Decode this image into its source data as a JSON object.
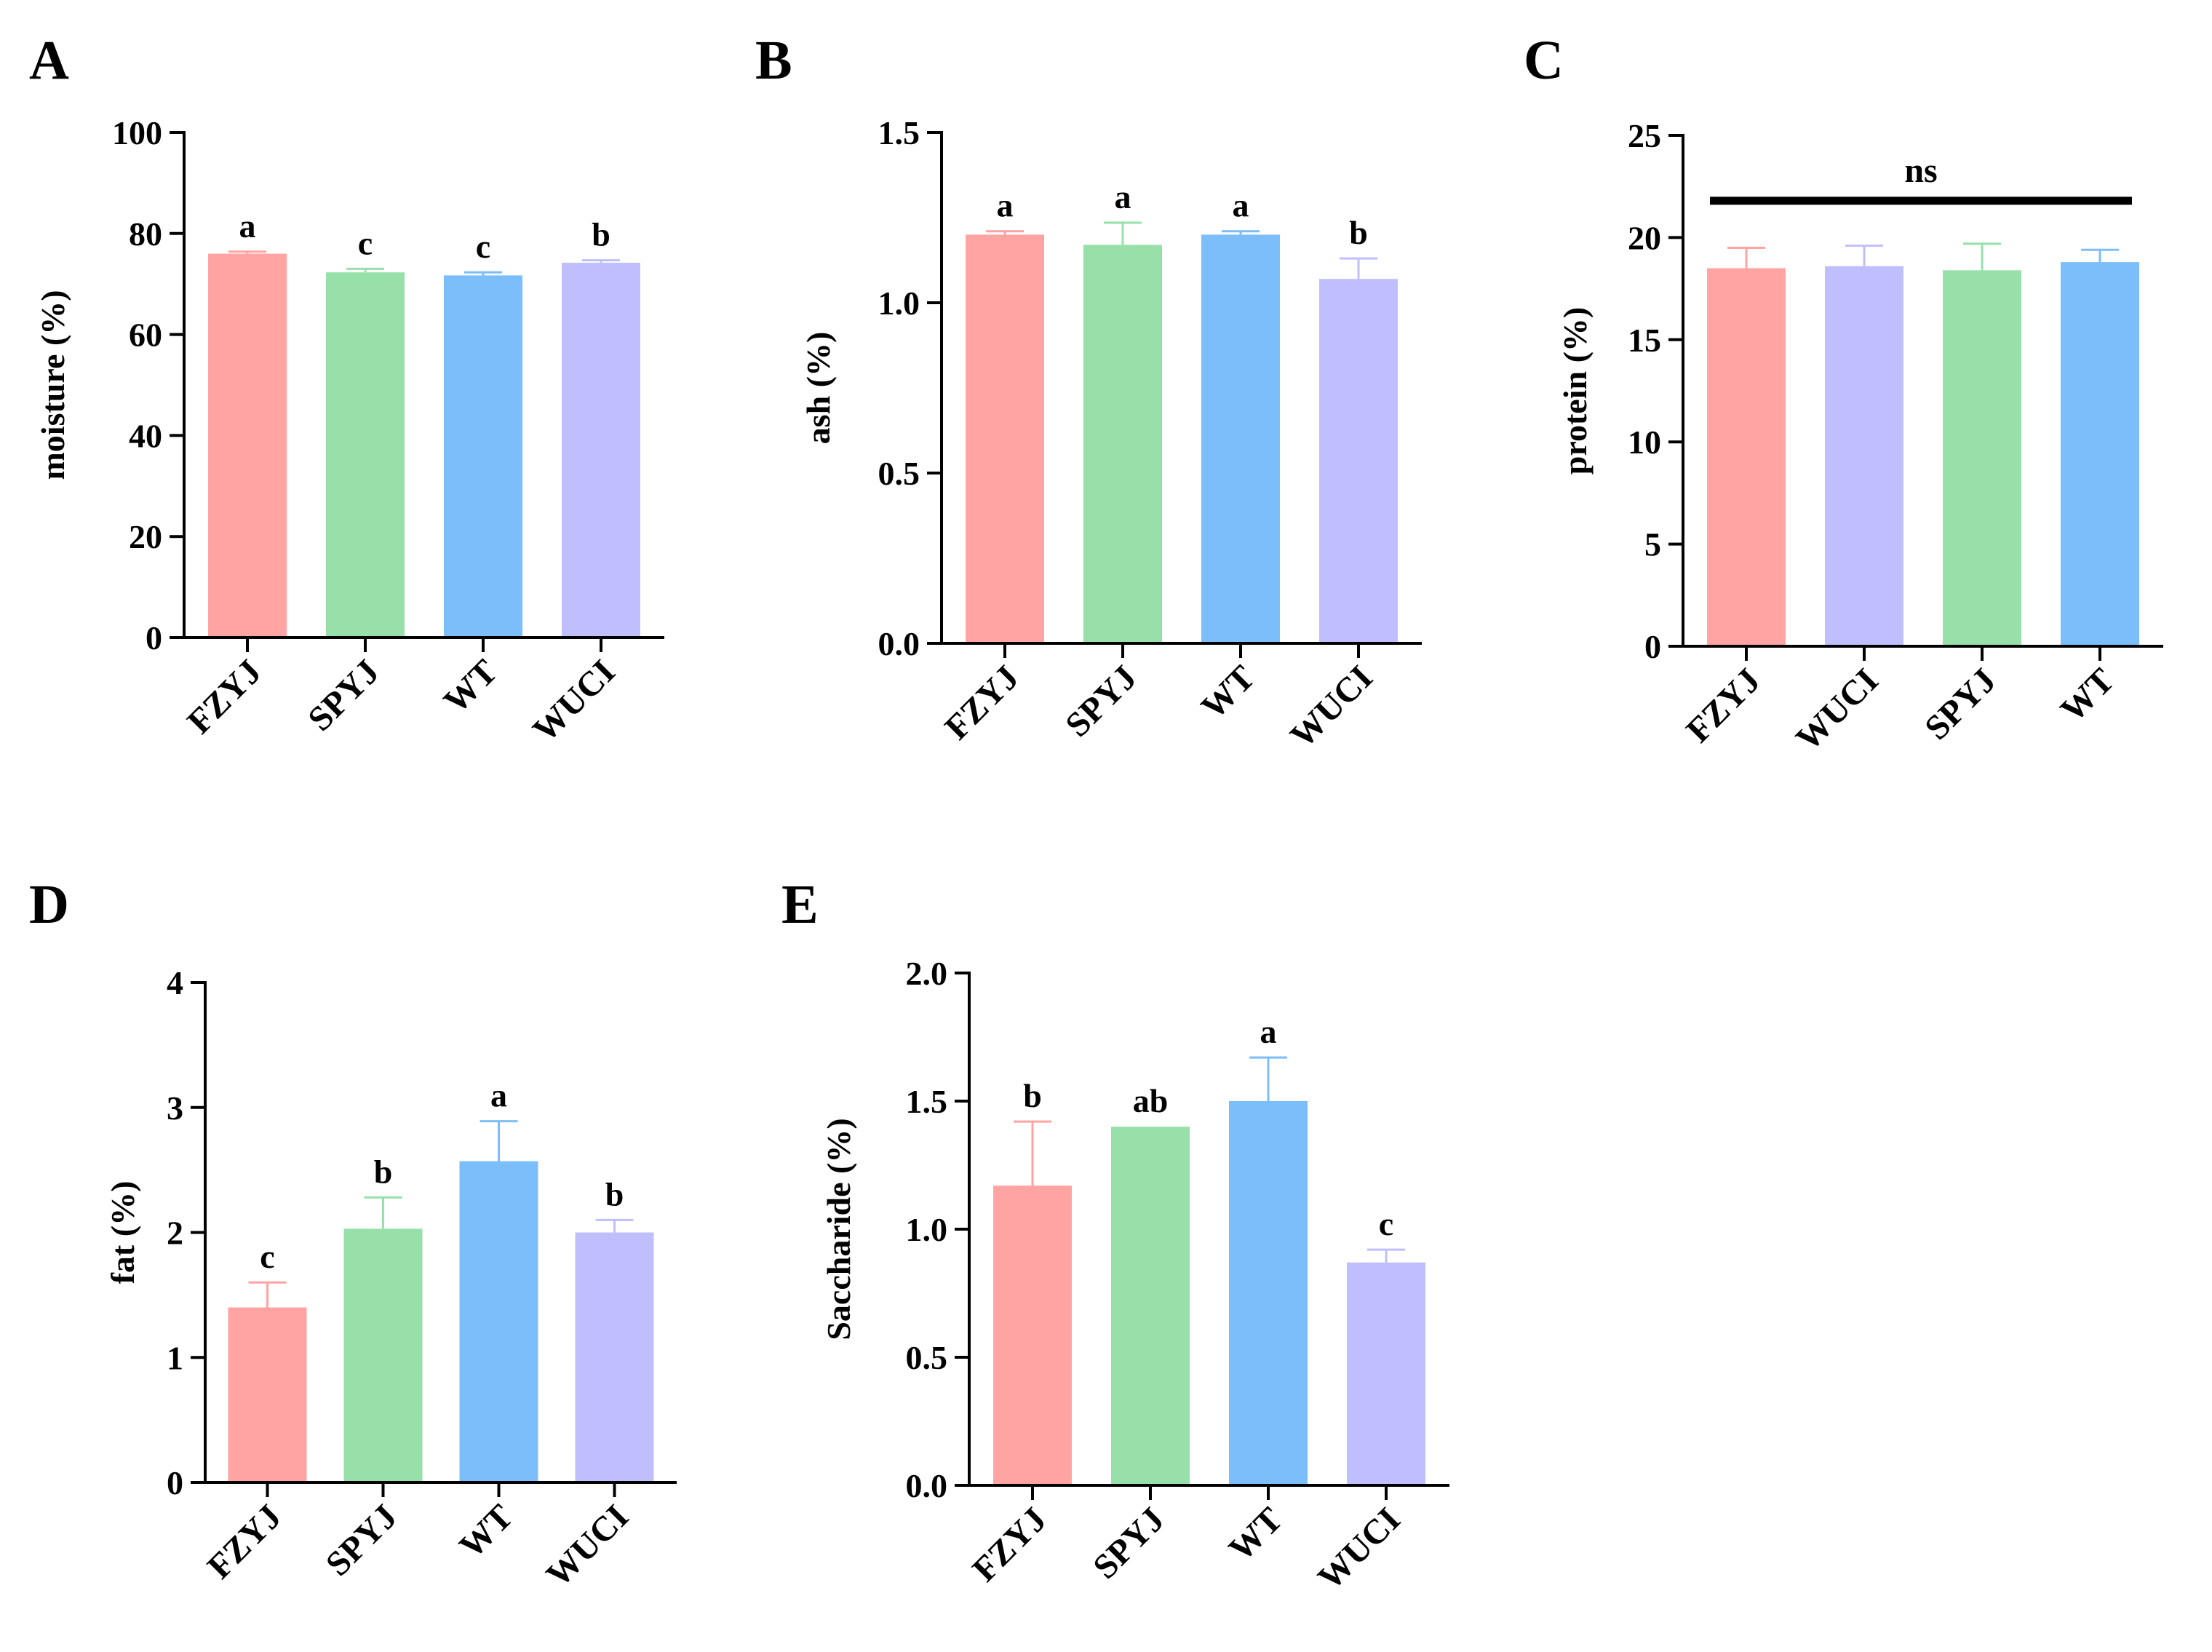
{
  "colors": {
    "FZYJ": "#FFA3A3",
    "SPYJ": "#98E0AA",
    "WT": "#7BBEFA",
    "WUCI": "#C0BFFD",
    "axis": "#000000"
  },
  "chart_data": [
    {
      "id": "A",
      "type": "bar",
      "panel_label": "A",
      "ylabel": "moisture (%)",
      "categories": [
        "FZYJ",
        "SPYJ",
        "WT",
        "WUCI"
      ],
      "values": [
        76.0,
        72.3,
        71.7,
        74.2
      ],
      "errors": [
        0.4,
        0.7,
        0.6,
        0.5
      ],
      "letters": [
        "a",
        "c",
        "c",
        "b"
      ],
      "ylim": [
        0,
        100
      ],
      "yticks": [
        "0",
        "20",
        "40",
        "60",
        "80",
        "100"
      ],
      "ytick_values": [
        0,
        20,
        40,
        60,
        80,
        100
      ],
      "significance": null
    },
    {
      "id": "B",
      "type": "bar",
      "panel_label": "B",
      "ylabel": "ash  (%)",
      "categories": [
        "FZYJ",
        "SPYJ",
        "WT",
        "WUCI"
      ],
      "values": [
        1.2,
        1.17,
        1.2,
        1.07
      ],
      "errors": [
        0.01,
        0.065,
        0.01,
        0.06
      ],
      "letters": [
        "a",
        "a",
        "a",
        "b"
      ],
      "ylim": [
        0,
        1.5
      ],
      "yticks": [
        "0.0",
        "0.5",
        "1.0",
        "1.5"
      ],
      "ytick_values": [
        0,
        0.5,
        1.0,
        1.5
      ],
      "significance": null
    },
    {
      "id": "C",
      "type": "bar",
      "panel_label": "C",
      "ylabel": "protein  (%)",
      "categories": [
        "FZYJ",
        "WUCI",
        "SPYJ",
        "WT"
      ],
      "values": [
        18.5,
        18.6,
        18.4,
        18.8
      ],
      "errors": [
        1.0,
        1.0,
        1.3,
        0.6
      ],
      "letters": [
        "",
        "",
        "",
        ""
      ],
      "ylim": [
        0,
        25
      ],
      "yticks": [
        "0",
        "5",
        "10",
        "15",
        "20",
        "25"
      ],
      "ytick_values": [
        0,
        5,
        10,
        15,
        20,
        25
      ],
      "significance": {
        "label": "ns",
        "y": 21.8
      }
    },
    {
      "id": "D",
      "type": "bar",
      "panel_label": "D",
      "ylabel": "fat  (%)",
      "categories": [
        "FZYJ",
        "SPYJ",
        "WT",
        "WUCI"
      ],
      "values": [
        1.4,
        2.03,
        2.57,
        2.0
      ],
      "errors": [
        0.2,
        0.25,
        0.32,
        0.1
      ],
      "letters": [
        "c",
        "b",
        "a",
        "b"
      ],
      "ylim": [
        0,
        4
      ],
      "yticks": [
        "0",
        "1",
        "2",
        "3",
        "4"
      ],
      "ytick_values": [
        0,
        1,
        2,
        3,
        4
      ],
      "significance": null
    },
    {
      "id": "E",
      "type": "bar",
      "panel_label": "E",
      "ylabel": "Saccharide (%)",
      "categories": [
        "FZYJ",
        "SPYJ",
        "WT",
        "WUCI"
      ],
      "values": [
        1.17,
        1.4,
        1.5,
        0.87
      ],
      "errors": [
        0.25,
        0.0,
        0.17,
        0.05
      ],
      "letters": [
        "b",
        "ab",
        "a",
        "c"
      ],
      "ylim": [
        0,
        2.0
      ],
      "yticks": [
        "0.0",
        "0.5",
        "1.0",
        "1.5",
        "2.0"
      ],
      "ytick_values": [
        0,
        0.5,
        1.0,
        1.5,
        2.0
      ],
      "significance": null
    }
  ]
}
